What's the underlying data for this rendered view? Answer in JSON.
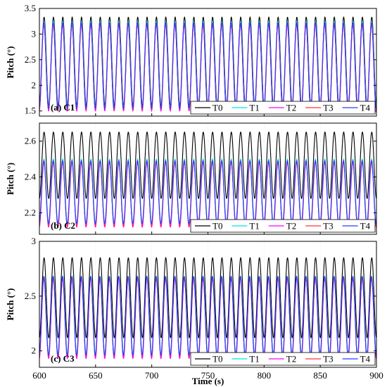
{
  "chart_data": [
    {
      "type": "line",
      "panel_label": "(a) C1",
      "ylabel": "Pitch (°)",
      "xlabel": "",
      "xlim": [
        600,
        900
      ],
      "ylim": [
        1.4,
        3.5
      ],
      "yticks": [
        "1.5",
        "2",
        "2.5",
        "3",
        "3.5"
      ],
      "ytick_values": [
        1.5,
        2,
        2.5,
        3,
        3.5
      ],
      "xticks": [],
      "grid": true,
      "legend_position": "bottom-right",
      "oscillation_cycles": 36,
      "series": [
        {
          "name": "T0",
          "color": "#000000",
          "min": 1.6,
          "max": 3.33
        },
        {
          "name": "T1",
          "color": "#00e5e5",
          "min": 1.55,
          "max": 3.25
        },
        {
          "name": "T2",
          "color": "#ff00ff",
          "min": 1.5,
          "max": 3.18
        },
        {
          "name": "T3",
          "color": "#ff3333",
          "min": 1.53,
          "max": 3.22
        },
        {
          "name": "T4",
          "color": "#2a3cff",
          "min": 1.55,
          "max": 3.22
        }
      ]
    },
    {
      "type": "line",
      "panel_label": "(b) C2",
      "ylabel": "Pitch (°)",
      "xlabel": "",
      "xlim": [
        600,
        900
      ],
      "ylim": [
        2.08,
        2.7
      ],
      "yticks": [
        "2.2",
        "2.4",
        "2.6"
      ],
      "ytick_values": [
        2.2,
        2.4,
        2.6
      ],
      "xticks": [],
      "grid": true,
      "legend_position": "bottom-right",
      "oscillation_cycles": 36,
      "series": [
        {
          "name": "T0",
          "color": "#000000",
          "min": 2.28,
          "max": 2.65
        },
        {
          "name": "T1",
          "color": "#00e5e5",
          "min": 2.14,
          "max": 2.5
        },
        {
          "name": "T2",
          "color": "#ff00ff",
          "min": 2.12,
          "max": 2.48
        },
        {
          "name": "T3",
          "color": "#ff3333",
          "min": 2.13,
          "max": 2.49
        },
        {
          "name": "T4",
          "color": "#2a3cff",
          "min": 2.14,
          "max": 2.49
        }
      ]
    },
    {
      "type": "line",
      "panel_label": "(c) C3",
      "ylabel": "Pitch (°)",
      "xlabel": "Time (s)",
      "xlim": [
        600,
        900
      ],
      "ylim": [
        1.85,
        3.0
      ],
      "yticks": [
        "2",
        "2.5",
        "3"
      ],
      "ytick_values": [
        2,
        2.5,
        3
      ],
      "xticks": [
        "600",
        "650",
        "700",
        "750",
        "800",
        "850",
        "900"
      ],
      "xtick_values": [
        600,
        650,
        700,
        750,
        800,
        850,
        900
      ],
      "grid": true,
      "legend_position": "bottom-right",
      "oscillation_cycles": 36,
      "series": [
        {
          "name": "T0",
          "color": "#000000",
          "min": 2.12,
          "max": 2.85
        },
        {
          "name": "T1",
          "color": "#00e5e5",
          "min": 1.97,
          "max": 2.68
        },
        {
          "name": "T2",
          "color": "#ff00ff",
          "min": 1.93,
          "max": 2.66
        },
        {
          "name": "T3",
          "color": "#ff3333",
          "min": 1.95,
          "max": 2.67
        },
        {
          "name": "T4",
          "color": "#2a3cff",
          "min": 1.96,
          "max": 2.68
        }
      ]
    }
  ]
}
